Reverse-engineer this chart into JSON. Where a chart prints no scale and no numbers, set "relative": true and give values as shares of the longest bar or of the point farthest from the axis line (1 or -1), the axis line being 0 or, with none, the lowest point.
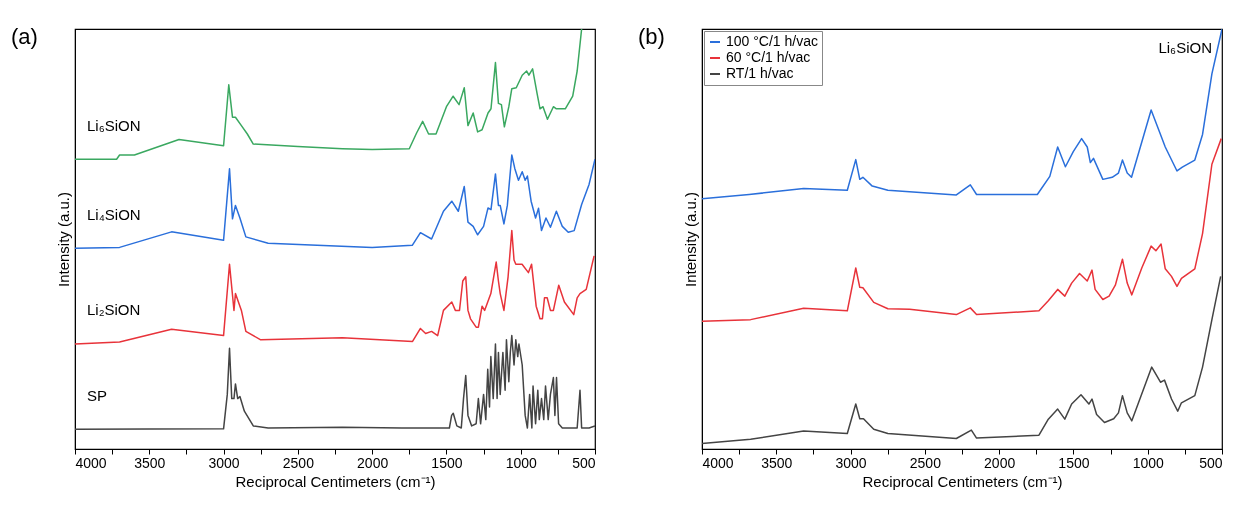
{
  "chart_data": [
    {
      "type": "line",
      "title": "(a)",
      "xlabel": "Reciprocal Centimeters (cm⁻¹)",
      "ylabel": "Intensity (a.u.)",
      "relative": true,
      "xlim": [
        4000,
        500
      ],
      "xticks": [
        4000,
        {
          "value": 3750,
          "label": null
        },
        3500,
        {
          "value": 3250,
          "label": null
        },
        3000,
        {
          "value": 2750,
          "label": null
        },
        2500,
        {
          "value": 2250,
          "label": null
        },
        2000,
        {
          "value": 1750,
          "label": null
        },
        1500,
        {
          "value": 1250,
          "label": null
        },
        1000,
        {
          "value": 750,
          "label": null
        },
        500
      ],
      "tick_labels": "x",
      "grid": false,
      "legend": false,
      "line_style": "solid",
      "marker": "none",
      "series": [
        {
          "name": "Li₆SiON",
          "color": "#3aa860",
          "x": [
            4000,
            3720,
            3700,
            3600,
            3300,
            3000,
            2965,
            2940,
            2920,
            2880,
            2840,
            2800,
            2500,
            2200,
            2000,
            1750,
            1700,
            1660,
            1620,
            1570,
            1500,
            1455,
            1415,
            1380,
            1355,
            1320,
            1290,
            1260,
            1220,
            1200,
            1170,
            1150,
            1130,
            1110,
            1080,
            1060,
            1030,
            990,
            960,
            945,
            920,
            890,
            870,
            850,
            820,
            780,
            760,
            700,
            650,
            620,
            590
          ],
          "values": [
            0.69,
            0.69,
            0.7,
            0.7,
            0.737,
            0.722,
            0.867,
            0.79,
            0.79,
            0.77,
            0.75,
            0.726,
            0.72,
            0.715,
            0.713,
            0.715,
            0.753,
            0.78,
            0.75,
            0.75,
            0.815,
            0.84,
            0.82,
            0.86,
            0.77,
            0.8,
            0.755,
            0.76,
            0.8,
            0.81,
            0.92,
            0.823,
            0.82,
            0.767,
            0.815,
            0.858,
            0.86,
            0.89,
            0.9,
            0.89,
            0.905,
            0.847,
            0.81,
            0.815,
            0.785,
            0.815,
            0.81,
            0.81,
            0.84,
            0.9,
            1.0
          ]
        },
        {
          "name": "Li₄SiON",
          "color": "#2a6fdb",
          "x": [
            4000,
            3700,
            3350,
            3000,
            2960,
            2940,
            2920,
            2890,
            2850,
            2700,
            2000,
            1730,
            1675,
            1600,
            1520,
            1464,
            1420,
            1380,
            1355,
            1320,
            1290,
            1250,
            1220,
            1200,
            1170,
            1150,
            1138,
            1113,
            1090,
            1060,
            1040,
            1015,
            990,
            970,
            955,
            930,
            900,
            880,
            860,
            830,
            800,
            760,
            720,
            680,
            640,
            590,
            540,
            500
          ],
          "values": [
            0.478,
            0.48,
            0.517,
            0.497,
            0.667,
            0.548,
            0.58,
            0.55,
            0.505,
            0.49,
            0.48,
            0.485,
            0.515,
            0.5,
            0.566,
            0.59,
            0.566,
            0.625,
            0.54,
            0.53,
            0.51,
            0.53,
            0.574,
            0.57,
            0.655,
            0.58,
            0.58,
            0.536,
            0.58,
            0.7,
            0.668,
            0.64,
            0.66,
            0.64,
            0.65,
            0.59,
            0.55,
            0.573,
            0.52,
            0.55,
            0.528,
            0.566,
            0.53,
            0.516,
            0.52,
            0.582,
            0.63,
            0.69
          ]
        },
        {
          "name": "Li₂SiON",
          "color": "#e8333a",
          "x": [
            4000,
            3700,
            3350,
            3000,
            2960,
            2930,
            2920,
            2880,
            2850,
            2750,
            2200,
            1728,
            1675,
            1640,
            1600,
            1559,
            1520,
            1464,
            1440,
            1412,
            1390,
            1370,
            1355,
            1338,
            1300,
            1285,
            1260,
            1243,
            1201,
            1165,
            1150,
            1138,
            1113,
            1085,
            1060,
            1045,
            1033,
            991,
            948,
            927,
            896,
            870,
            854,
            840,
            822,
            800,
            780,
            744,
            706,
            643,
            620,
            601,
            559,
            506
          ],
          "values": [
            0.25,
            0.255,
            0.285,
            0.27,
            0.44,
            0.33,
            0.37,
            0.33,
            0.28,
            0.26,
            0.265,
            0.256,
            0.287,
            0.275,
            0.28,
            0.27,
            0.33,
            0.35,
            0.33,
            0.33,
            0.4,
            0.41,
            0.33,
            0.31,
            0.29,
            0.29,
            0.34,
            0.33,
            0.37,
            0.445,
            0.4,
            0.37,
            0.33,
            0.41,
            0.52,
            0.45,
            0.44,
            0.44,
            0.42,
            0.44,
            0.34,
            0.31,
            0.31,
            0.36,
            0.36,
            0.33,
            0.33,
            0.39,
            0.35,
            0.32,
            0.36,
            0.37,
            0.38,
            0.46
          ]
        },
        {
          "name": "SP",
          "color": "#444444",
          "x": [
            4000,
            3000,
            2975,
            2960,
            2945,
            2930,
            2920,
            2905,
            2890,
            2860,
            2800,
            2700,
            2200,
            1800,
            1480,
            1465,
            1454,
            1430,
            1400,
            1385,
            1370,
            1355,
            1330,
            1300,
            1285,
            1270,
            1250,
            1235,
            1222,
            1210,
            1201,
            1185,
            1170,
            1159,
            1150,
            1138,
            1120,
            1105,
            1096,
            1080,
            1070,
            1060,
            1045,
            1033,
            1020,
            1012,
            990,
            970,
            955,
            940,
            925,
            917,
            900,
            885,
            875,
            860,
            845,
            833,
            815,
            800,
            780,
            770,
            759,
            745,
            720,
            620,
            601,
            590,
            540,
            500
          ],
          "values": [
            0.047,
            0.048,
            0.13,
            0.24,
            0.12,
            0.12,
            0.155,
            0.12,
            0.125,
            0.09,
            0.055,
            0.05,
            0.052,
            0.05,
            0.05,
            0.08,
            0.085,
            0.055,
            0.05,
            0.12,
            0.175,
            0.08,
            0.055,
            0.06,
            0.12,
            0.06,
            0.13,
            0.07,
            0.19,
            0.1,
            0.22,
            0.12,
            0.25,
            0.12,
            0.23,
            0.13,
            0.23,
            0.14,
            0.26,
            0.16,
            0.23,
            0.27,
            0.2,
            0.26,
            0.22,
            0.25,
            0.2,
            0.08,
            0.05,
            0.13,
            0.05,
            0.15,
            0.06,
            0.14,
            0.07,
            0.12,
            0.07,
            0.15,
            0.07,
            0.13,
            0.17,
            0.08,
            0.17,
            0.06,
            0.05,
            0.05,
            0.14,
            0.05,
            0.05,
            0.055
          ]
        }
      ]
    },
    {
      "type": "line",
      "title": "(b)",
      "xlabel": "Reciprocal Centimeters (cm⁻¹)",
      "ylabel": "Intensity (a.u.)",
      "relative": true,
      "xlim": [
        4000,
        500
      ],
      "xticks": [
        4000,
        {
          "value": 3750,
          "label": null
        },
        3500,
        {
          "value": 3250,
          "label": null
        },
        3000,
        {
          "value": 2750,
          "label": null
        },
        2500,
        {
          "value": 2250,
          "label": null
        },
        2000,
        {
          "value": 1750,
          "label": null
        },
        1500,
        {
          "value": 1250,
          "label": null
        },
        1000,
        {
          "value": 750,
          "label": null
        },
        500
      ],
      "tick_labels": "x",
      "grid": false,
      "legend": "top left",
      "line_style": "solid",
      "marker": "none",
      "annotations": [
        "Li₆SiON"
      ],
      "series": [
        {
          "name": "100 °C/1 h/vac",
          "color": "#2a6fdb",
          "x": [
            4000,
            3683,
            3316,
            3022,
            2965,
            2938,
            2917,
            2854,
            2749,
            2288,
            2194,
            2152,
            1743,
            1659,
            1606,
            1554,
            1501,
            1445,
            1407,
            1386,
            1365,
            1302,
            1239,
            1197,
            1170,
            1138,
            1109,
            977,
            914,
            882,
            803,
            767,
            683,
            631,
            568,
            500
          ],
          "values": [
            0.596,
            0.606,
            0.62,
            0.616,
            0.689,
            0.642,
            0.647,
            0.626,
            0.616,
            0.605,
            0.629,
            0.606,
            0.606,
            0.649,
            0.719,
            0.672,
            0.708,
            0.739,
            0.719,
            0.682,
            0.692,
            0.642,
            0.647,
            0.657,
            0.688,
            0.657,
            0.647,
            0.807,
            0.749,
            0.719,
            0.662,
            0.671,
            0.688,
            0.749,
            0.893,
            1.0
          ]
        },
        {
          "name": "60 °C/1 h/vac",
          "color": "#e8333a",
          "x": [
            4000,
            3673,
            3316,
            3022,
            2965,
            2938,
            2917,
            2844,
            2749,
            2602,
            2288,
            2194,
            2152,
            1732,
            1669,
            1606,
            1558,
            1512,
            1459,
            1407,
            1375,
            1354,
            1302,
            1260,
            1218,
            1170,
            1138,
            1107,
            1040,
            977,
            945,
            910,
            882,
            840,
            803,
            773,
            683,
            631,
            568,
            505
          ],
          "values": [
            0.304,
            0.308,
            0.335,
            0.329,
            0.431,
            0.385,
            0.384,
            0.349,
            0.334,
            0.333,
            0.32,
            0.336,
            0.32,
            0.329,
            0.353,
            0.38,
            0.364,
            0.395,
            0.418,
            0.4,
            0.426,
            0.38,
            0.356,
            0.364,
            0.39,
            0.452,
            0.395,
            0.367,
            0.431,
            0.483,
            0.472,
            0.488,
            0.429,
            0.411,
            0.387,
            0.406,
            0.429,
            0.513,
            0.678,
            0.739
          ]
        },
        {
          "name": "RT/1 h/vac",
          "color": "#444444",
          "x": [
            4000,
            3673,
            3316,
            3022,
            2965,
            2938,
            2913,
            2844,
            2749,
            2288,
            2187,
            2152,
            1732,
            1669,
            1606,
            1558,
            1512,
            1449,
            1396,
            1375,
            1344,
            1291,
            1229,
            1197,
            1170,
            1138,
            1107,
            973,
            914,
            887,
            840,
            798,
            773,
            683,
            631,
            568,
            509
          ],
          "values": [
            0.013,
            0.023,
            0.043,
            0.037,
            0.107,
            0.072,
            0.072,
            0.047,
            0.037,
            0.025,
            0.045,
            0.026,
            0.033,
            0.071,
            0.095,
            0.071,
            0.107,
            0.129,
            0.107,
            0.119,
            0.082,
            0.063,
            0.072,
            0.086,
            0.127,
            0.086,
            0.067,
            0.195,
            0.159,
            0.164,
            0.119,
            0.09,
            0.11,
            0.127,
            0.195,
            0.308,
            0.411
          ]
        }
      ]
    }
  ]
}
